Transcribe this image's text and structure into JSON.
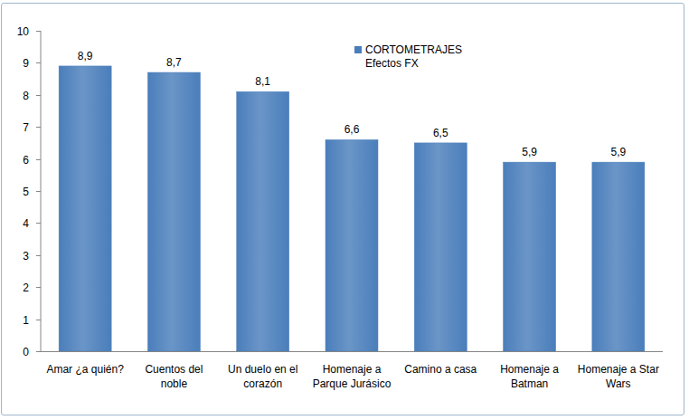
{
  "chart_data": {
    "type": "bar",
    "categories": [
      "Amar ¿a quién?",
      "Cuentos del noble",
      "Un duelo en el corazón",
      "Homenaje a Parque Jurásico",
      "Camino a casa",
      "Homenaje a Batman",
      "Homenaje a Star Wars"
    ],
    "series": [
      {
        "name": "CORTOMETRAJES Efectos FX",
        "color": "#4a7ebb",
        "values": [
          8.9,
          8.7,
          8.1,
          6.6,
          6.5,
          5.9,
          5.9
        ],
        "value_labels": [
          "8,9",
          "8,7",
          "8,1",
          "6,6",
          "6,5",
          "5,9",
          "5,9"
        ]
      }
    ],
    "ylim": [
      0,
      10
    ],
    "yticks": [
      0,
      1,
      2,
      3,
      4,
      5,
      6,
      7,
      8,
      9,
      10
    ],
    "grid": false,
    "data_labels": true,
    "legend": "top-right"
  }
}
